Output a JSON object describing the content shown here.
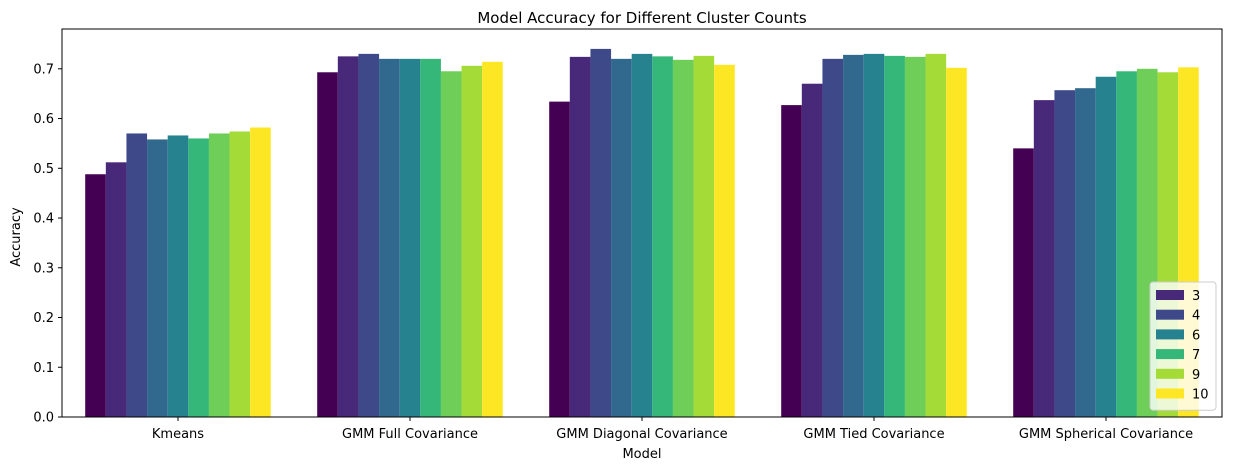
{
  "chart_data": {
    "type": "bar",
    "title": "Model Accuracy for Different Cluster Counts",
    "xlabel": "Model",
    "ylabel": "Accuracy",
    "ylim": [
      0,
      0.78
    ],
    "yticks": [
      "0.0",
      "0.1",
      "0.2",
      "0.3",
      "0.4",
      "0.5",
      "0.6",
      "0.7"
    ],
    "categories": [
      "Kmeans",
      "GMM Full Covariance",
      "GMM Diagonal Covariance",
      "GMM Tied Covariance",
      "GMM Spherical Covariance"
    ],
    "series": [
      {
        "color": "#440154",
        "values": [
          0.488,
          0.693,
          0.634,
          0.627,
          0.54
        ]
      },
      {
        "name": "3",
        "color": "#482878",
        "values": [
          0.512,
          0.725,
          0.724,
          0.67,
          0.637
        ]
      },
      {
        "name": "4",
        "color": "#3e4989",
        "values": [
          0.57,
          0.73,
          0.74,
          0.72,
          0.657
        ]
      },
      {
        "color": "#31688e",
        "values": [
          0.558,
          0.72,
          0.72,
          0.728,
          0.661
        ]
      },
      {
        "name": "6",
        "color": "#26828e",
        "values": [
          0.566,
          0.72,
          0.73,
          0.73,
          0.684
        ]
      },
      {
        "name": "7",
        "color": "#35b779",
        "values": [
          0.56,
          0.72,
          0.725,
          0.726,
          0.695
        ]
      },
      {
        "color": "#6ece58",
        "values": [
          0.57,
          0.695,
          0.718,
          0.724,
          0.7
        ]
      },
      {
        "name": "9",
        "color": "#a5db36",
        "values": [
          0.574,
          0.706,
          0.726,
          0.73,
          0.693
        ]
      },
      {
        "name": "10",
        "color": "#fde725",
        "values": [
          0.582,
          0.714,
          0.708,
          0.702,
          0.703
        ]
      }
    ],
    "legend": {
      "placement": "lower-right",
      "entries": [
        {
          "label": "3",
          "color": "#482878"
        },
        {
          "label": "4",
          "color": "#3e4989"
        },
        {
          "label": "6",
          "color": "#26828e"
        },
        {
          "label": "7",
          "color": "#35b779"
        },
        {
          "label": "9",
          "color": "#a5db36"
        },
        {
          "label": "10",
          "color": "#fde725"
        }
      ]
    },
    "grid": false
  }
}
